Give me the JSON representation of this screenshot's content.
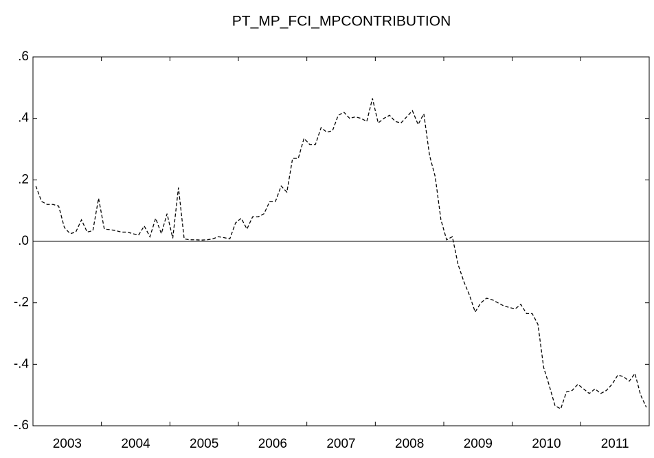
{
  "chart_data": {
    "type": "line",
    "title": "PT_MP_FCI_MPCONTRIBUTION",
    "categories": [
      null,
      null,
      null,
      null,
      null,
      null,
      "2003",
      null,
      null,
      null,
      null,
      null,
      null,
      null,
      null,
      null,
      null,
      null,
      "2004",
      null,
      null,
      null,
      null,
      null,
      null,
      null,
      null,
      null,
      null,
      null,
      "2005",
      null,
      null,
      null,
      null,
      null,
      null,
      null,
      null,
      null,
      null,
      null,
      "2006",
      null,
      null,
      null,
      null,
      null,
      null,
      null,
      null,
      null,
      null,
      null,
      "2007",
      null,
      null,
      null,
      null,
      null,
      null,
      null,
      null,
      null,
      null,
      null,
      "2008",
      null,
      null,
      null,
      null,
      null,
      null,
      null,
      null,
      null,
      null,
      null,
      "2009",
      null,
      null,
      null,
      null,
      null,
      null,
      null,
      null,
      null,
      null,
      null,
      "2010",
      null,
      null,
      null,
      null,
      null,
      null,
      null,
      null,
      null,
      null,
      null,
      "2011",
      null,
      null,
      null,
      null,
      null
    ],
    "values": [
      0.18,
      0.13,
      0.12,
      0.12,
      0.115,
      0.045,
      0.025,
      0.03,
      0.07,
      0.03,
      0.035,
      0.14,
      0.04,
      0.038,
      0.035,
      0.03,
      0.03,
      0.025,
      0.02,
      0.05,
      0.015,
      0.075,
      0.025,
      0.09,
      0.01,
      0.175,
      0.008,
      0.005,
      0.005,
      0.004,
      0.005,
      0.008,
      0.015,
      0.012,
      0.008,
      0.06,
      0.075,
      0.04,
      0.08,
      0.08,
      0.09,
      0.13,
      0.13,
      0.18,
      0.16,
      0.27,
      0.27,
      0.335,
      0.315,
      0.315,
      0.37,
      0.355,
      0.36,
      0.41,
      0.42,
      0.4,
      0.405,
      0.4,
      0.39,
      0.465,
      0.385,
      0.4,
      0.41,
      0.39,
      0.385,
      0.405,
      0.425,
      0.38,
      0.415,
      0.28,
      0.21,
      0.07,
      0.005,
      0.015,
      -0.075,
      -0.13,
      -0.175,
      -0.23,
      -0.2,
      -0.185,
      -0.19,
      -0.2,
      -0.21,
      -0.215,
      -0.22,
      -0.205,
      -0.235,
      -0.235,
      -0.27,
      -0.41,
      -0.47,
      -0.535,
      -0.545,
      -0.49,
      -0.485,
      -0.465,
      -0.48,
      -0.495,
      -0.48,
      -0.495,
      -0.485,
      -0.465,
      -0.435,
      -0.44,
      -0.455,
      -0.43,
      -0.5,
      -0.54
    ],
    "color": "#000000",
    "dashed": true,
    "ylim": [
      -0.6,
      0.6
    ],
    "yticks": [
      {
        "value": -0.6,
        "label": "-.6"
      },
      {
        "value": -0.4,
        "label": "-.4"
      },
      {
        "value": -0.2,
        "label": "-.2"
      },
      {
        "value": 0,
        "label": ".0"
      },
      {
        "value": 0.2,
        "label": ".2"
      },
      {
        "value": 0.4,
        "label": ".4"
      },
      {
        "value": 0.6,
        "label": ".6"
      }
    ],
    "zero_line": true
  }
}
